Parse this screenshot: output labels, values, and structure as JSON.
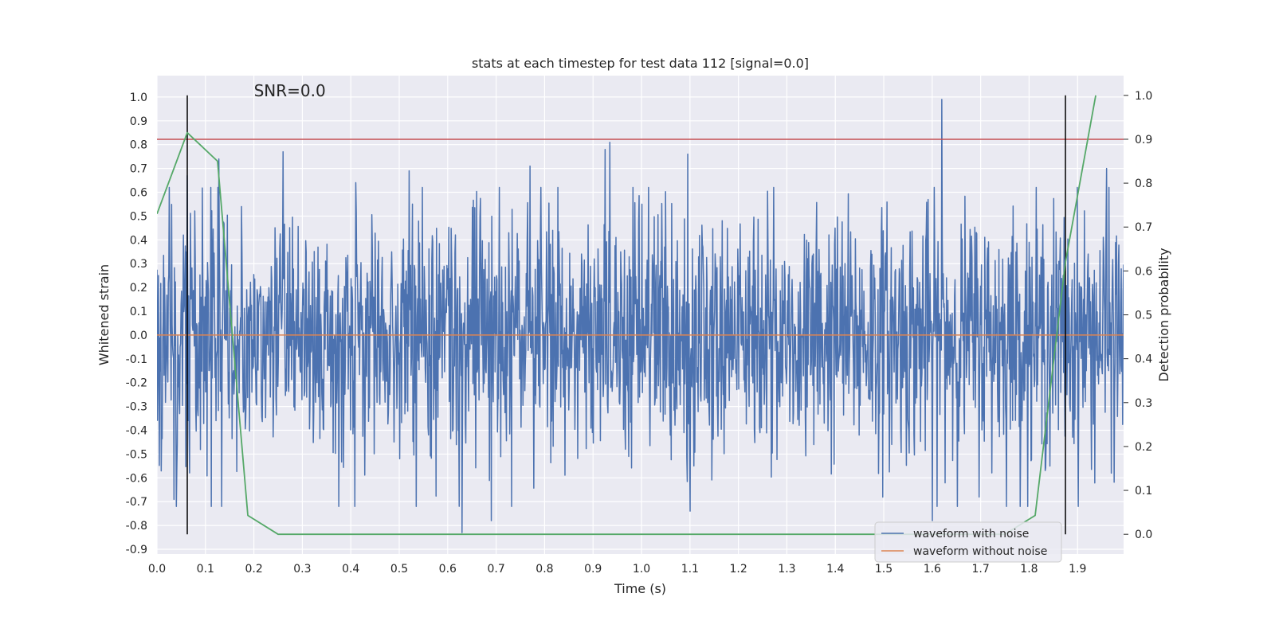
{
  "chart_data": {
    "type": "line",
    "title": "stats at each timestep for test data 112 [signal=0.0]",
    "xlabel": "Time (s)",
    "ylabel": "Whitened strain",
    "y2label": "Detection probability",
    "annotation": "SNR=0.0",
    "xlim": [
      0.0,
      1.995
    ],
    "ylim": [
      -0.92,
      1.09
    ],
    "y2lim": [
      -0.045,
      1.045
    ],
    "xticks": [
      "0.0",
      "0.1",
      "0.2",
      "0.3",
      "0.4",
      "0.5",
      "0.6",
      "0.7",
      "0.8",
      "0.9",
      "1.0",
      "1.1",
      "1.2",
      "1.3",
      "1.4",
      "1.5",
      "1.6",
      "1.7",
      "1.8",
      "1.9"
    ],
    "yticks": [
      "-0.9",
      "-0.8",
      "-0.7",
      "-0.6",
      "-0.5",
      "-0.4",
      "-0.3",
      "-0.2",
      "-0.1",
      "0.0",
      "0.1",
      "0.2",
      "0.3",
      "0.4",
      "0.5",
      "0.6",
      "0.7",
      "0.8",
      "0.9",
      "1.0"
    ],
    "y2ticks": [
      "0.0",
      "0.1",
      "0.2",
      "0.3",
      "0.4",
      "0.5",
      "0.6",
      "0.7",
      "0.8",
      "0.9",
      "1.0"
    ],
    "grid": true,
    "legend_position": "lower-right",
    "series": [
      {
        "name": "waveform with noise",
        "color": "#4c72b0",
        "axis": "left",
        "approx_samples": 2048,
        "noise_sigma": 0.26,
        "notable_peaks": [
          {
            "x": 0.062,
            "y": 0.67
          },
          {
            "x": 0.128,
            "y": 0.74
          },
          {
            "x": 0.26,
            "y": 0.77
          },
          {
            "x": 0.41,
            "y": 0.64
          },
          {
            "x": 0.52,
            "y": 0.69
          },
          {
            "x": 0.69,
            "y": 0.71
          },
          {
            "x": 0.77,
            "y": 0.71
          },
          {
            "x": 0.925,
            "y": 0.78
          },
          {
            "x": 0.935,
            "y": 0.81
          },
          {
            "x": 1.095,
            "y": 0.76
          },
          {
            "x": 1.62,
            "y": 0.99
          },
          {
            "x": 1.96,
            "y": 0.7
          },
          {
            "x": 0.63,
            "y": -0.83
          },
          {
            "x": 0.69,
            "y": -0.78
          },
          {
            "x": 1.6,
            "y": -0.78
          },
          {
            "x": 0.04,
            "y": -0.72
          },
          {
            "x": 1.1,
            "y": -0.74
          }
        ]
      },
      {
        "name": "waveform without noise",
        "color": "#dd8452",
        "axis": "left",
        "x": [
          0.0,
          1.995
        ],
        "y": [
          0.0,
          0.0
        ]
      },
      {
        "name": "detection probability",
        "color": "#55a868",
        "axis": "right",
        "x": [
          0.0,
          0.0625,
          0.125,
          0.1875,
          0.25,
          0.3125,
          0.375,
          0.4375,
          0.5,
          0.5625,
          0.625,
          0.6875,
          0.75,
          0.8125,
          0.875,
          0.9375,
          1.0,
          1.0625,
          1.125,
          1.1875,
          1.25,
          1.3125,
          1.375,
          1.4375,
          1.5,
          1.5625,
          1.625,
          1.6875,
          1.75,
          1.8125,
          1.875,
          1.9375
        ],
        "y": [
          0.73,
          0.915,
          0.85,
          0.043,
          0.0,
          0.0,
          0.0,
          0.0,
          0.0,
          0.0,
          0.0,
          0.0,
          0.0,
          0.0,
          0.0,
          0.0,
          0.0,
          0.0,
          0.0,
          0.0,
          0.0,
          0.0,
          0.0,
          0.0,
          0.0,
          0.0,
          0.0,
          0.0,
          0.0,
          0.043,
          0.62,
          1.0
        ]
      }
    ],
    "threshold_line": {
      "axis": "right",
      "y": 0.9,
      "color": "#c44e52"
    },
    "vertical_markers": [
      {
        "x": 0.0625,
        "color": "#000000"
      },
      {
        "x": 1.875,
        "color": "#000000"
      }
    ]
  }
}
